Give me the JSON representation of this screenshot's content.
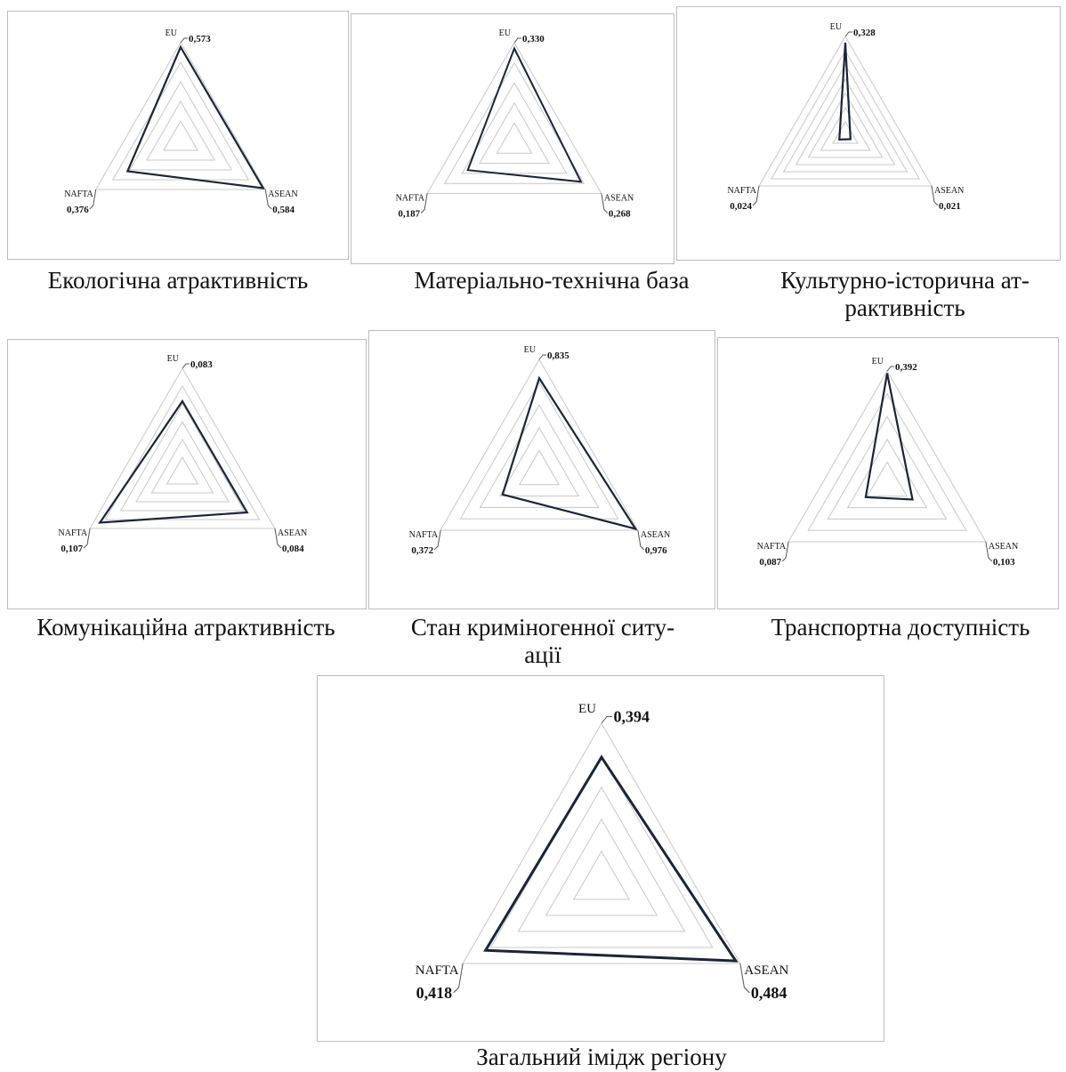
{
  "chart_data": [
    {
      "type": "radar",
      "title": "Екологічна атрактивність",
      "axes": [
        "EU",
        "ASEAN",
        "NAFTA"
      ],
      "values": [
        0.573,
        0.584,
        0.376
      ],
      "value_labels": [
        "0,573",
        "0,584",
        "0,376"
      ],
      "rlim": [
        0,
        0.6
      ],
      "grid_levels": 5
    },
    {
      "type": "radar",
      "title": "Матеріально-технічна база",
      "axes": [
        "EU",
        "ASEAN",
        "NAFTA"
      ],
      "values": [
        0.33,
        0.268,
        0.187
      ],
      "value_labels": [
        "0,330",
        "0,268",
        "0,187"
      ],
      "rlim": [
        0,
        0.35
      ],
      "grid_levels": 5
    },
    {
      "type": "radar",
      "title": "Культурно-історична ат-\nрактивність",
      "axes": [
        "EU",
        "ASEAN",
        "NAFTA"
      ],
      "values": [
        0.328,
        0.021,
        0.024
      ],
      "value_labels": [
        "0,328",
        "0,021",
        "0,024"
      ],
      "rlim": [
        0,
        0.35
      ],
      "grid_levels": 7
    },
    {
      "type": "radar",
      "title": "Комунікаційна атрактивність",
      "axes": [
        "EU",
        "ASEAN",
        "NAFTA"
      ],
      "values": [
        0.083,
        0.084,
        0.107
      ],
      "value_labels": [
        "0,083",
        "0,084",
        "0,107"
      ],
      "rlim": [
        0,
        0.12
      ],
      "grid_levels": 6
    },
    {
      "type": "radar",
      "title": "Стан криміногенної ситу-\nації",
      "axes": [
        "EU",
        "ASEAN",
        "NAFTA"
      ],
      "values": [
        0.835,
        0.976,
        0.372
      ],
      "value_labels": [
        "0,835",
        "0,976",
        "0,372"
      ],
      "rlim": [
        0,
        1.0
      ],
      "grid_levels": 5
    },
    {
      "type": "radar",
      "title": "Транспортна доступність",
      "axes": [
        "EU",
        "ASEAN",
        "NAFTA"
      ],
      "values": [
        0.392,
        0.103,
        0.087
      ],
      "value_labels": [
        "0,392",
        "0,103",
        "0,087"
      ],
      "rlim": [
        0,
        0.4
      ],
      "grid_levels": 5
    },
    {
      "type": "radar",
      "title": "Загальний імідж регіону",
      "axes": [
        "EU",
        "ASEAN",
        "NAFTA"
      ],
      "values": [
        0.394,
        0.484,
        0.418
      ],
      "value_labels": [
        "0,394",
        "0,484",
        "0,418"
      ],
      "rlim": [
        0,
        0.5
      ],
      "grid_levels": 5
    }
  ],
  "colors": {
    "series": "#1c2438",
    "grid": "#c8c8c8",
    "leader": "#555555"
  }
}
